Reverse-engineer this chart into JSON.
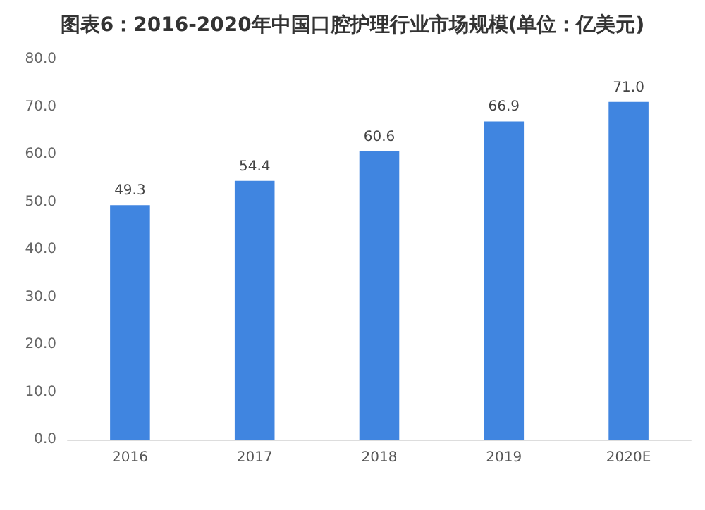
{
  "chart_data": {
    "type": "bar",
    "title": "图表6：2016-2020年中国口腔护理行业市场规模(单位：亿美元)",
    "categories": [
      "2016",
      "2017",
      "2018",
      "2019",
      "2020E"
    ],
    "values": [
      49.3,
      54.4,
      60.6,
      66.9,
      71.0
    ],
    "color": "#4085e0",
    "ylim": [
      0,
      80
    ],
    "yticks": [
      {
        "value": 0,
        "label": "0.0"
      },
      {
        "value": 10,
        "label": "10.0"
      },
      {
        "value": 20,
        "label": "20.0"
      },
      {
        "value": 30,
        "label": "30.0"
      },
      {
        "value": 40,
        "label": "40.0"
      },
      {
        "value": 50,
        "label": "50.0"
      },
      {
        "value": 60,
        "label": "60.0"
      },
      {
        "value": 70,
        "label": "70.0"
      },
      {
        "value": 80,
        "label": "80.0"
      }
    ],
    "value_labels": [
      "49.3",
      "54.4",
      "60.6",
      "66.9",
      "71.0"
    ]
  }
}
